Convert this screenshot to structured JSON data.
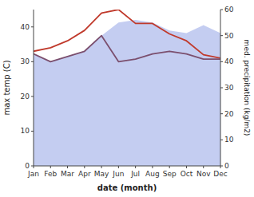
{
  "chart_data": {
    "type": "line",
    "categories": [
      "Jan",
      "Feb",
      "Mar",
      "Apr",
      "May",
      "Jun",
      "Jul",
      "Aug",
      "Sep",
      "Oct",
      "Nov",
      "Dec"
    ],
    "series": [
      {
        "type": "area",
        "color": "#b0bcec",
        "axis": "y2",
        "values": [
          43,
          40,
          42,
          44,
          50,
          55,
          56,
          55,
          52,
          51,
          54,
          51
        ]
      },
      {
        "type": "line",
        "color": "#c0392b",
        "values": [
          33,
          34,
          36,
          39,
          44,
          45,
          41,
          41,
          38,
          36,
          32,
          31
        ]
      },
      {
        "type": "line",
        "color": "#7b4f6e",
        "axis": "y2",
        "values": [
          43,
          40,
          42,
          44,
          50,
          40,
          41,
          43,
          44,
          43,
          41,
          41
        ]
      }
    ],
    "x_label": "date (month)",
    "y_label": "max temp (C)",
    "y2_label": "med. precipitation (kg/m2)",
    "ylim": [
      0,
      45
    ],
    "yticks": [
      0,
      10,
      20,
      30,
      40
    ],
    "y2lim": [
      0,
      60
    ],
    "y2ticks": [
      0,
      10,
      20,
      30,
      40,
      50,
      60
    ],
    "grid": false
  }
}
